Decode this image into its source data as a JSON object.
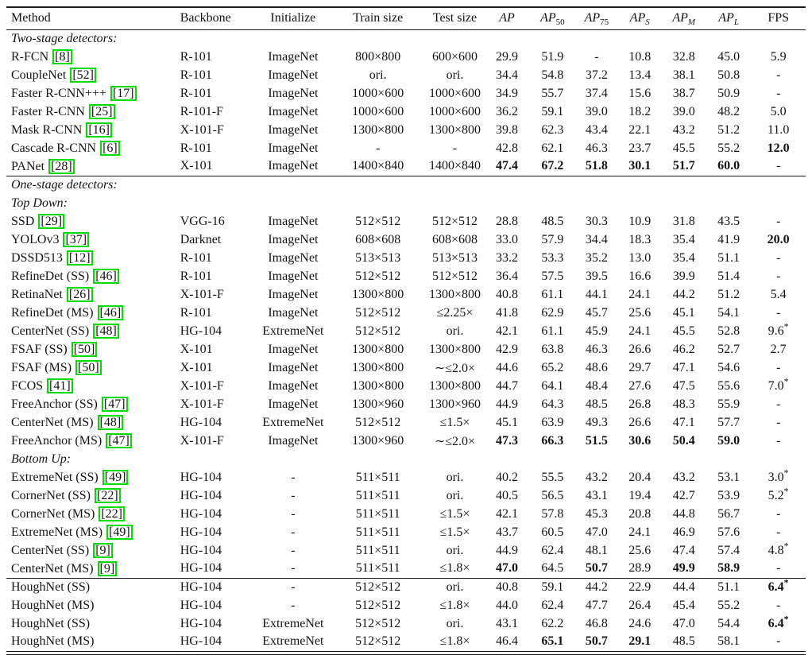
{
  "colors": {
    "citation_border": "#00dd00",
    "rule": "#1c1c1c",
    "text": "#141414"
  },
  "table": {
    "columns": [
      {
        "key": "method",
        "label": "Method",
        "math": false
      },
      {
        "key": "backbone",
        "label": "Backbone",
        "math": false
      },
      {
        "key": "init",
        "label": "Initialize",
        "math": false
      },
      {
        "key": "train",
        "label": "Train size",
        "math": false
      },
      {
        "key": "test",
        "label": "Test size",
        "math": false
      },
      {
        "key": "ap",
        "label": "AP",
        "math": true,
        "sub": ""
      },
      {
        "key": "ap50",
        "label": "AP",
        "math": true,
        "sub": "50",
        "sub_italic": false
      },
      {
        "key": "ap75",
        "label": "AP",
        "math": true,
        "sub": "75",
        "sub_italic": false
      },
      {
        "key": "aps",
        "label": "AP",
        "math": true,
        "sub": "S",
        "sub_italic": true
      },
      {
        "key": "apm",
        "label": "AP",
        "math": true,
        "sub": "M",
        "sub_italic": true
      },
      {
        "key": "apl",
        "label": "AP",
        "math": true,
        "sub": "L",
        "sub_italic": true
      },
      {
        "key": "fps",
        "label": "FPS",
        "math": false
      }
    ],
    "groups": [
      {
        "rule_before": false,
        "labels": [
          "Two-stage detectors:"
        ],
        "rows": [
          {
            "method": "R-FCN",
            "cite": "8",
            "backbone": "R-101",
            "init": "ImageNet",
            "train": "800×800",
            "test": "600×600",
            "vals": [
              "29.9",
              "51.9",
              "-",
              "10.8",
              "32.8",
              "45.0",
              "5.9"
            ],
            "bold": []
          },
          {
            "method": "CoupleNet",
            "cite": "52",
            "backbone": "R-101",
            "init": "ImageNet",
            "train": "ori.",
            "test": "ori.",
            "vals": [
              "34.4",
              "54.8",
              "37.2",
              "13.4",
              "38.1",
              "50.8",
              "-"
            ],
            "bold": []
          },
          {
            "method": "Faster R-CNN+++",
            "cite": "17",
            "backbone": "R-101",
            "init": "ImageNet",
            "train": "1000×600",
            "test": "1000×600",
            "vals": [
              "34.9",
              "55.7",
              "37.4",
              "15.6",
              "38.7",
              "50.9",
              "-"
            ],
            "bold": []
          },
          {
            "method": "Faster R-CNN",
            "cite": "25",
            "backbone": "R-101-F",
            "init": "ImageNet",
            "train": "1000×600",
            "test": "1000×600",
            "vals": [
              "36.2",
              "59.1",
              "39.0",
              "18.2",
              "39.0",
              "48.2",
              "5.0"
            ],
            "bold": []
          },
          {
            "method": "Mask R-CNN",
            "cite": "16",
            "backbone": "X-101-F",
            "init": "ImageNet",
            "train": "1300×800",
            "test": "1300×800",
            "vals": [
              "39.8",
              "62.3",
              "43.4",
              "22.1",
              "43.2",
              "51.2",
              "11.0"
            ],
            "bold": []
          },
          {
            "method": "Cascade R-CNN",
            "cite": "6",
            "backbone": "R-101",
            "init": "ImageNet",
            "train": "-",
            "test": "-",
            "vals": [
              "42.8",
              "62.1",
              "46.3",
              "23.7",
              "45.5",
              "55.2",
              "12.0"
            ],
            "bold": [
              6
            ]
          },
          {
            "method": "PANet",
            "cite": "28",
            "backbone": "X-101",
            "init": "ImageNet",
            "train": "1400×840",
            "test": "1400×840",
            "vals": [
              "47.4",
              "67.2",
              "51.8",
              "30.1",
              "51.7",
              "60.0",
              "-"
            ],
            "bold": [
              0,
              1,
              2,
              3,
              4,
              5
            ]
          }
        ]
      },
      {
        "rule_before": true,
        "labels": [
          "One-stage detectors:",
          "Top Down:"
        ],
        "rows": [
          {
            "method": "SSD",
            "cite": "29",
            "backbone": "VGG-16",
            "init": "ImageNet",
            "train": "512×512",
            "test": "512×512",
            "vals": [
              "28.8",
              "48.5",
              "30.3",
              "10.9",
              "31.8",
              "43.5",
              "-"
            ],
            "bold": []
          },
          {
            "method": "YOLOv3",
            "cite": "37",
            "backbone": "Darknet",
            "init": "ImageNet",
            "train": "608×608",
            "test": "608×608",
            "vals": [
              "33.0",
              "57.9",
              "34.4",
              "18.3",
              "35.4",
              "41.9",
              "20.0"
            ],
            "bold": [
              6
            ]
          },
          {
            "method": "DSSD513",
            "cite": "12",
            "backbone": "R-101",
            "init": "ImageNet",
            "train": "513×513",
            "test": "513×513",
            "vals": [
              "33.2",
              "53.3",
              "35.2",
              "13.0",
              "35.4",
              "51.1",
              "-"
            ],
            "bold": []
          },
          {
            "method": "RefineDet (SS)",
            "cite": "46",
            "backbone": "R-101",
            "init": "ImageNet",
            "train": "512×512",
            "test": "512×512",
            "vals": [
              "36.4",
              "57.5",
              "39.5",
              "16.6",
              "39.9",
              "51.4",
              "-"
            ],
            "bold": []
          },
          {
            "method": "RetinaNet",
            "cite": "26",
            "backbone": "X-101-F",
            "init": "ImageNet",
            "train": "1300×800",
            "test": "1300×800",
            "vals": [
              "40.8",
              "61.1",
              "44.1",
              "24.1",
              "44.2",
              "51.2",
              "5.4"
            ],
            "bold": []
          },
          {
            "method": "RefineDet (MS)",
            "cite": "46",
            "backbone": "R-101",
            "init": "ImageNet",
            "train": "512×512",
            "test": "≤2.25×",
            "vals": [
              "41.8",
              "62.9",
              "45.7",
              "25.6",
              "45.1",
              "54.1",
              "-"
            ],
            "bold": []
          },
          {
            "method": "CenterNet (SS)",
            "cite": "48",
            "backbone": "HG-104",
            "init": "ExtremeNet",
            "train": "512×512",
            "test": "ori.",
            "vals": [
              "42.1",
              "61.1",
              "45.9",
              "24.1",
              "45.5",
              "52.8",
              "9.6*"
            ],
            "bold": []
          },
          {
            "method": "FSAF (SS)",
            "cite": "50",
            "backbone": "X-101",
            "init": "ImageNet",
            "train": "1300×800",
            "test": "1300×800",
            "vals": [
              "42.9",
              "63.8",
              "46.3",
              "26.6",
              "46.2",
              "52.7",
              "2.7"
            ],
            "bold": []
          },
          {
            "method": "FSAF (MS)",
            "cite": "50",
            "backbone": "X-101",
            "init": "ImageNet",
            "train": "1300×800",
            "test": "∼≤2.0×",
            "vals": [
              "44.6",
              "65.2",
              "48.6",
              "29.7",
              "47.1",
              "54.6",
              "-"
            ],
            "bold": []
          },
          {
            "method": "FCOS",
            "cite": "41",
            "backbone": "X-101-F",
            "init": "ImageNet",
            "train": "1300×800",
            "test": "1300×800",
            "vals": [
              "44.7",
              "64.1",
              "48.4",
              "27.6",
              "47.5",
              "55.6",
              "7.0*"
            ],
            "bold": []
          },
          {
            "method": "FreeAnchor (SS)",
            "cite": "47",
            "backbone": "X-101-F",
            "init": "ImageNet",
            "train": "1300×960",
            "test": "1300×960",
            "vals": [
              "44.9",
              "64.3",
              "48.5",
              "26.8",
              "48.3",
              "55.9",
              "-"
            ],
            "bold": []
          },
          {
            "method": "CenterNet (MS)",
            "cite": "48",
            "backbone": "HG-104",
            "init": "ExtremeNet",
            "train": "512×512",
            "test": "≤1.5×",
            "vals": [
              "45.1",
              "63.9",
              "49.3",
              "26.6",
              "47.1",
              "57.7",
              "-"
            ],
            "bold": []
          },
          {
            "method": "FreeAnchor (MS)",
            "cite": "47",
            "backbone": "X-101-F",
            "init": "ImageNet",
            "train": "1300×960",
            "test": "∼≤2.0×",
            "vals": [
              "47.3",
              "66.3",
              "51.5",
              "30.6",
              "50.4",
              "59.0",
              "-"
            ],
            "bold": [
              0,
              1,
              2,
              3,
              4,
              5
            ]
          }
        ]
      },
      {
        "rule_before": false,
        "labels": [
          "Bottom Up:"
        ],
        "rows": [
          {
            "method": "ExtremeNet (SS)",
            "cite": "49",
            "backbone": "HG-104",
            "init": "-",
            "train": "511×511",
            "test": "ori.",
            "vals": [
              "40.2",
              "55.5",
              "43.2",
              "20.4",
              "43.2",
              "53.1",
              "3.0*"
            ],
            "bold": []
          },
          {
            "method": "CornerNet (SS)",
            "cite": "22",
            "backbone": "HG-104",
            "init": "-",
            "train": "511×511",
            "test": "ori.",
            "vals": [
              "40.5",
              "56.5",
              "43.1",
              "19.4",
              "42.7",
              "53.9",
              "5.2*"
            ],
            "bold": []
          },
          {
            "method": "CornerNet (MS)",
            "cite": "22",
            "backbone": "HG-104",
            "init": "-",
            "train": "511×511",
            "test": "≤1.5×",
            "vals": [
              "42.1",
              "57.8",
              "45.3",
              "20.8",
              "44.8",
              "56.7",
              "-"
            ],
            "bold": []
          },
          {
            "method": "ExtremeNet (MS)",
            "cite": "49",
            "backbone": "HG-104",
            "init": "-",
            "train": "511×511",
            "test": "≤1.5×",
            "vals": [
              "43.7",
              "60.5",
              "47.0",
              "24.1",
              "46.9",
              "57.6",
              "-"
            ],
            "bold": []
          },
          {
            "method": "CenterNet (SS)",
            "cite": "9",
            "backbone": "HG-104",
            "init": "-",
            "train": "511×511",
            "test": "ori.",
            "vals": [
              "44.9",
              "62.4",
              "48.1",
              "25.6",
              "47.4",
              "57.4",
              "4.8*"
            ],
            "bold": []
          },
          {
            "method": "CenterNet (MS)",
            "cite": "9",
            "backbone": "HG-104",
            "init": "-",
            "train": "511×511",
            "test": "≤1.8×",
            "vals": [
              "47.0",
              "64.5",
              "50.7",
              "28.9",
              "49.9",
              "58.9",
              "-"
            ],
            "bold": [
              0,
              2,
              4,
              5
            ]
          }
        ]
      },
      {
        "rule_before": true,
        "labels": [],
        "rows": [
          {
            "method": "HoughNet (SS)",
            "cite": null,
            "backbone": "HG-104",
            "init": "-",
            "train": "512×512",
            "test": "ori.",
            "vals": [
              "40.8",
              "59.1",
              "44.2",
              "22.9",
              "44.4",
              "51.1",
              "6.4*"
            ],
            "bold": [
              6
            ]
          },
          {
            "method": "HoughNet (MS)",
            "cite": null,
            "backbone": "HG-104",
            "init": "-",
            "train": "512×512",
            "test": "≤1.8×",
            "vals": [
              "44.0",
              "62.4",
              "47.7",
              "26.4",
              "45.4",
              "55.2",
              "-"
            ],
            "bold": []
          },
          {
            "method": "HoughNet (SS)",
            "cite": null,
            "backbone": "HG-104",
            "init": "ExtremeNet",
            "train": "512×512",
            "test": "ori.",
            "vals": [
              "43.1",
              "62.2",
              "46.8",
              "24.6",
              "47.0",
              "54.4",
              "6.4*"
            ],
            "bold": [
              6
            ]
          },
          {
            "method": "HoughNet (MS)",
            "cite": null,
            "backbone": "HG-104",
            "init": "ExtremeNet",
            "train": "512×512",
            "test": "≤1.8×",
            "vals": [
              "46.4",
              "65.1",
              "50.7",
              "29.1",
              "48.5",
              "58.1",
              "-"
            ],
            "bold": [
              1,
              2,
              3
            ]
          }
        ]
      }
    ]
  }
}
